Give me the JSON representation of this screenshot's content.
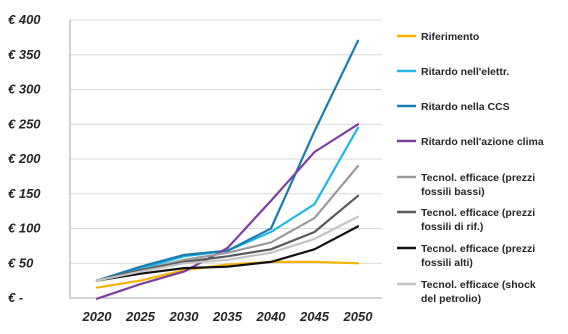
{
  "chart_data": {
    "type": "line",
    "title": "",
    "xlabel": "",
    "ylabel": "",
    "x": [
      2020,
      2025,
      2030,
      2035,
      2040,
      2045,
      2050
    ],
    "x_tick_labels": [
      "2020",
      "2025",
      "2030",
      "2035",
      "2040",
      "2045",
      "2050"
    ],
    "ylim": [
      0,
      400
    ],
    "y_ticks": [
      0,
      50,
      100,
      150,
      200,
      250,
      300,
      350,
      400
    ],
    "y_tick_labels": [
      "€ -",
      "€ 50",
      "€ 100",
      "€ 150",
      "€ 200",
      "€ 250",
      "€ 300",
      "€ 350",
      "€ 400"
    ],
    "grid": "horizontal",
    "legend_position": "right",
    "series": [
      {
        "name": "Riferimento",
        "legend_lines": [
          "Riferimento"
        ],
        "color": "#f5b300",
        "values": [
          15,
          25,
          40,
          48,
          52,
          52,
          50
        ]
      },
      {
        "name": "Ritardo nell'elettr.",
        "legend_lines": [
          "Ritardo nell'elettr."
        ],
        "color": "#21b6e8",
        "values": [
          25,
          42,
          60,
          68,
          95,
          135,
          245
        ]
      },
      {
        "name": "Ritardo nella CCS",
        "legend_lines": [
          "Ritardo nella CCS"
        ],
        "color": "#1b7bb0",
        "values": [
          25,
          45,
          62,
          68,
          100,
          240,
          370
        ]
      },
      {
        "name": "Ritardo nell'azione clima",
        "legend_lines": [
          "Ritardo nell'azione clima"
        ],
        "color": "#7b3fa0",
        "values": [
          -1,
          20,
          38,
          72,
          140,
          210,
          250
        ]
      },
      {
        "name": "Tecnol. efficace (prezzi fossili bassi)",
        "legend_lines": [
          "Tecnol. efficace (prezzi",
          "fossili bassi)"
        ],
        "color": "#9a9a9a",
        "values": [
          25,
          40,
          55,
          65,
          80,
          115,
          190
        ]
      },
      {
        "name": "Tecnol. efficace (prezzi fossili di rif.)",
        "legend_lines": [
          "Tecnol. efficace (prezzi",
          "fossili di rif.)"
        ],
        "color": "#595959",
        "values": [
          25,
          40,
          52,
          60,
          70,
          95,
          147
        ]
      },
      {
        "name": "Tecnol. efficace (prezzi fossili alti)",
        "legend_lines": [
          "Tecnol. efficace (prezzi",
          "fossili alti)"
        ],
        "color": "#111111",
        "values": [
          25,
          35,
          43,
          45,
          52,
          70,
          103
        ]
      },
      {
        "name": "Tecnol. efficace (shock del petrolio)",
        "legend_lines": [
          "Tecnol. efficace (shock",
          "del petrolio)"
        ],
        "color": "#c3c3c3",
        "values": [
          25,
          38,
          50,
          55,
          65,
          85,
          117
        ]
      }
    ]
  }
}
